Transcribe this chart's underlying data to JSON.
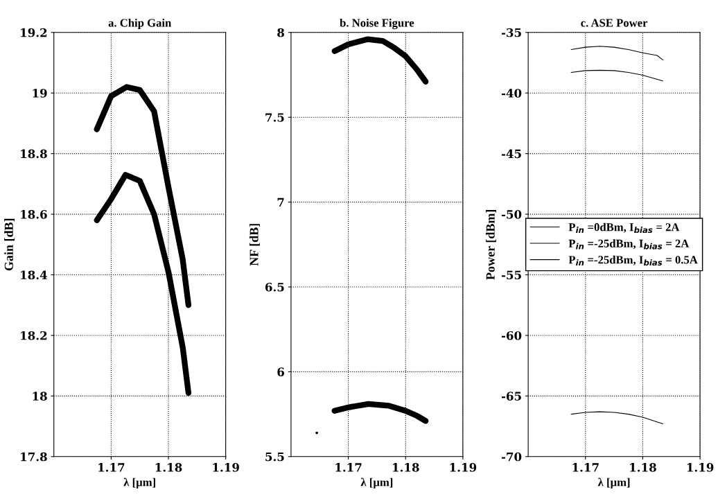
{
  "chart_data": [
    {
      "type": "line",
      "title": "a. Chip Gain",
      "xlabel": "λ [µm]",
      "ylabel": "Gain [dB]",
      "xlim": [
        1.16,
        1.19
      ],
      "xticks": [
        1.17,
        1.18,
        1.19
      ],
      "ylim": [
        17.8,
        19.2
      ],
      "yticks": [
        17.8,
        18,
        18.2,
        18.4,
        18.6,
        18.8,
        19,
        19.2
      ],
      "grid": true,
      "legend": false,
      "series": [
        {
          "color": "#000000",
          "x": [
            1.1675,
            1.17,
            1.1727,
            1.175,
            1.1775,
            1.1785,
            1.18,
            1.1825,
            1.1835
          ],
          "values": [
            18.88,
            18.99,
            19.02,
            19.01,
            18.94,
            18.84,
            18.69,
            18.45,
            18.3
          ]
        },
        {
          "color": "#000000",
          "x": [
            1.1675,
            1.17,
            1.1725,
            1.175,
            1.1775,
            1.18,
            1.1825,
            1.1835
          ],
          "values": [
            18.58,
            18.65,
            18.73,
            18.71,
            18.6,
            18.41,
            18.16,
            18.01
          ]
        }
      ]
    },
    {
      "type": "line",
      "title": "b. Noise Figure",
      "xlabel": "λ [µm]",
      "ylabel": "NF [dB]",
      "xlim": [
        1.16,
        1.19
      ],
      "xticks": [
        1.17,
        1.18,
        1.19
      ],
      "ylim": [
        5.5,
        8
      ],
      "yticks": [
        5.5,
        6,
        6.5,
        7,
        7.5,
        8
      ],
      "grid": true,
      "legend": false,
      "series": [
        {
          "color": "#000000",
          "x": [
            1.1676,
            1.17,
            1.1734,
            1.176,
            1.178,
            1.18,
            1.182,
            1.1835
          ],
          "values": [
            7.89,
            7.93,
            7.96,
            7.95,
            7.91,
            7.86,
            7.78,
            7.71
          ]
        },
        {
          "color": "#000000",
          "x": [
            1.1676,
            1.17,
            1.1735,
            1.177,
            1.18,
            1.182,
            1.1835
          ],
          "values": [
            5.77,
            5.79,
            5.81,
            5.8,
            5.77,
            5.74,
            5.71
          ]
        },
        {
          "type": "scatter",
          "color": "#000000",
          "x": [
            1.1645
          ],
          "values": [
            5.64
          ]
        }
      ]
    },
    {
      "type": "line",
      "title": "c. ASE Power",
      "xlabel": "λ [µm]",
      "ylabel": "Power [dBm]",
      "xlim": [
        1.16,
        1.19
      ],
      "xticks": [
        1.17,
        1.18,
        1.19
      ],
      "ylim": [
        -70,
        -35
      ],
      "yticks": [
        -70,
        -65,
        -60,
        -55,
        -50,
        -45,
        -40,
        -35
      ],
      "grid": true,
      "legend": "center",
      "series": [
        {
          "name": "P$_{in}$ =0dBm, I$_{bias}$ = 2A",
          "color": "#000000",
          "x": [
            1.1675,
            1.17,
            1.1725,
            1.175,
            1.1775,
            1.18,
            1.1825,
            1.1835
          ],
          "values": [
            -36.41,
            -36.22,
            -36.14,
            -36.22,
            -36.41,
            -36.68,
            -36.9,
            -37.26
          ]
        },
        {
          "name": "P$_{in}$ =-25dBm, I$_{bias}$ = 2A",
          "color": "#000000",
          "x": [
            1.1675,
            1.17,
            1.1725,
            1.175,
            1.1775,
            1.18,
            1.1835
          ],
          "values": [
            -38.3,
            -38.15,
            -38.12,
            -38.15,
            -38.3,
            -38.53,
            -39.0
          ]
        },
        {
          "name": "P$_{in}$ =-25dBm, I$_{bias}$ = 0.5A",
          "color": "#000000",
          "x": [
            1.1675,
            1.17,
            1.1725,
            1.175,
            1.1775,
            1.18,
            1.1835
          ],
          "values": [
            -66.5,
            -66.35,
            -66.3,
            -66.35,
            -66.5,
            -66.75,
            -67.3
          ]
        }
      ]
    }
  ]
}
